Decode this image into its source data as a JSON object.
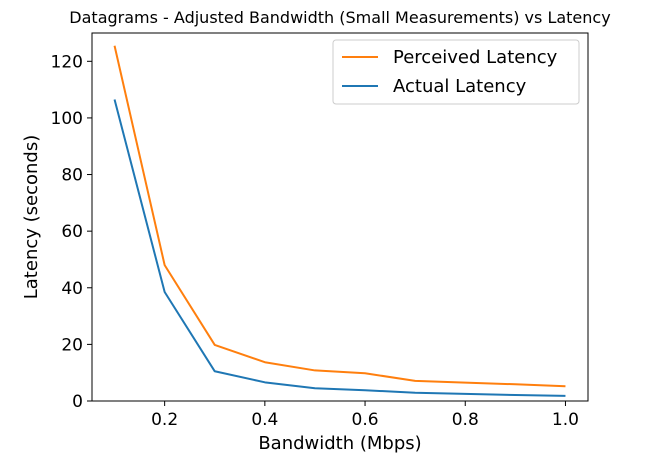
{
  "chart_data": {
    "type": "line",
    "title": "Datagrams - Adjusted Bandwidth (Small Measurements) vs Latency",
    "xlabel": "Bandwidth (Mbps)",
    "ylabel": "Latency (seconds)",
    "x": [
      0.1,
      0.2,
      0.3,
      0.4,
      0.5,
      0.6,
      0.7,
      0.8,
      0.9,
      1.0
    ],
    "xlim": [
      0.055,
      1.045
    ],
    "ylim": [
      0,
      130
    ],
    "xticks": [
      0.2,
      0.4,
      0.6,
      0.8,
      1.0
    ],
    "xtick_labels": [
      "0.2",
      "0.4",
      "0.6",
      "0.8",
      "1.0"
    ],
    "yticks": [
      0,
      20,
      40,
      60,
      80,
      100,
      120
    ],
    "ytick_labels": [
      "0",
      "20",
      "40",
      "60",
      "80",
      "100",
      "120"
    ],
    "grid": false,
    "legend_position": "top-right",
    "series": [
      {
        "name": "Perceived Latency",
        "color": "#ff7f0e",
        "values": [
          125.5,
          48.0,
          19.8,
          13.7,
          10.8,
          9.8,
          7.1,
          6.5,
          5.9,
          5.2
        ]
      },
      {
        "name": "Actual Latency",
        "color": "#1f77b4",
        "values": [
          106.5,
          38.5,
          10.5,
          6.6,
          4.5,
          3.8,
          2.9,
          2.5,
          2.1,
          1.8
        ]
      }
    ]
  }
}
